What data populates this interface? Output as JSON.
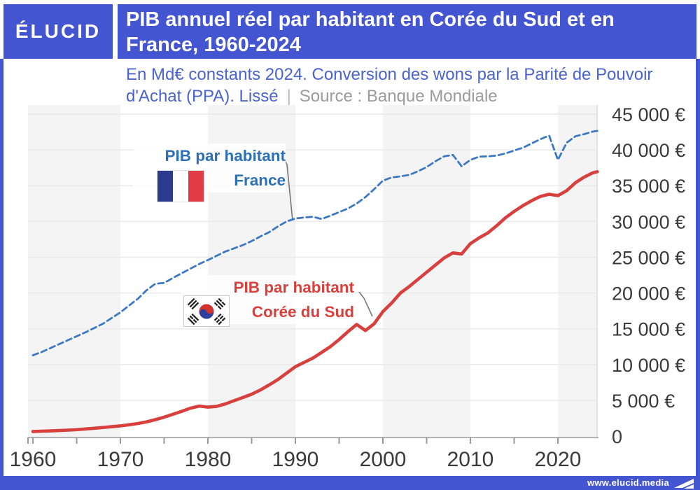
{
  "brand": {
    "logo_text": "ÉLUCID",
    "footer_url": "www.elucid.media"
  },
  "header": {
    "title_line1": "PIB annuel réel par habitant en Corée du Sud et en",
    "title_line2": "France, 1960-2024"
  },
  "subtitle": {
    "line1": "En Md€ constants 2024. Conversion des wons par la Parité de Pouvoir",
    "line2_main": "d'Achat (PPA). Lissé",
    "separator": "|",
    "source": "Source : Banque Mondiale"
  },
  "colors": {
    "brand_blue": "#4355d1",
    "subtitle_blue": "#4a63cf",
    "gray_text": "#9b9b9b",
    "france_blue": "#3c79c2",
    "korea_red": "#d8403e",
    "france_label_blue": "#2e70b8",
    "korea_label_red": "#d8403c",
    "gridline": "#e9e9e9",
    "band_gray": "#f4f4f5",
    "axis_gray": "#b3b3b3"
  },
  "chart_data": {
    "type": "line",
    "title": "PIB annuel réel par habitant en Corée du Sud et en France, 1960-2024",
    "unit": "€ constants 2024 par habitant (PPA, lissé)",
    "source": "Banque Mondiale",
    "x_domain": [
      1959.4,
      2024.5
    ],
    "y_domain": [
      0,
      45000
    ],
    "grid": true,
    "legend_position": "inline-labels",
    "y_ticks": [
      {
        "value": 0,
        "label": "0"
      },
      {
        "value": 5000,
        "label": "5 000 €"
      },
      {
        "value": 10000,
        "label": "10 000 €"
      },
      {
        "value": 15000,
        "label": "15 000 €"
      },
      {
        "value": 20000,
        "label": "20 000 €"
      },
      {
        "value": 25000,
        "label": "25 000 €"
      },
      {
        "value": 30000,
        "label": "30 000 €"
      },
      {
        "value": 35000,
        "label": "35 000 €"
      },
      {
        "value": 40000,
        "label": "40 000 €"
      },
      {
        "value": 45000,
        "label": "45 000 €"
      }
    ],
    "x_ticks": [
      {
        "year": 1960,
        "label": "1960"
      },
      {
        "year": 1970,
        "label": "1970"
      },
      {
        "year": 1980,
        "label": "1980"
      },
      {
        "year": 1990,
        "label": "1990"
      },
      {
        "year": 2000,
        "label": "2000"
      },
      {
        "year": 2010,
        "label": "2010"
      },
      {
        "year": 2020,
        "label": "2020"
      }
    ],
    "x_minor_ticks": [
      1960,
      1965,
      1970,
      1975,
      1980,
      1985,
      1990,
      1995,
      2000,
      2005,
      2010,
      2015,
      2020
    ],
    "gray_band_decades": [
      1960,
      1980,
      2000,
      2020
    ],
    "series": [
      {
        "name": "France",
        "label_line1": "PIB par habitant",
        "label_line2": "France",
        "color": "#3c79c2",
        "style": "dashed",
        "points": [
          [
            1960,
            11300
          ],
          [
            1961,
            11750
          ],
          [
            1962,
            12300
          ],
          [
            1963,
            12850
          ],
          [
            1964,
            13400
          ],
          [
            1965,
            13950
          ],
          [
            1966,
            14500
          ],
          [
            1967,
            15100
          ],
          [
            1968,
            15700
          ],
          [
            1969,
            16500
          ],
          [
            1970,
            17300
          ],
          [
            1971,
            18250
          ],
          [
            1972,
            19200
          ],
          [
            1973,
            20400
          ],
          [
            1974,
            21300
          ],
          [
            1975,
            21400
          ],
          [
            1976,
            22100
          ],
          [
            1977,
            22750
          ],
          [
            1978,
            23400
          ],
          [
            1979,
            24050
          ],
          [
            1980,
            24600
          ],
          [
            1981,
            25200
          ],
          [
            1982,
            25800
          ],
          [
            1983,
            26250
          ],
          [
            1984,
            26700
          ],
          [
            1985,
            27250
          ],
          [
            1986,
            27900
          ],
          [
            1987,
            28500
          ],
          [
            1988,
            29300
          ],
          [
            1989,
            30000
          ],
          [
            1990,
            30400
          ],
          [
            1991,
            30550
          ],
          [
            1992,
            30650
          ],
          [
            1993,
            30350
          ],
          [
            1994,
            30800
          ],
          [
            1995,
            31300
          ],
          [
            1996,
            31800
          ],
          [
            1997,
            32500
          ],
          [
            1998,
            33400
          ],
          [
            1999,
            34500
          ],
          [
            2000,
            35700
          ],
          [
            2001,
            36150
          ],
          [
            2002,
            36300
          ],
          [
            2003,
            36500
          ],
          [
            2004,
            37000
          ],
          [
            2005,
            37600
          ],
          [
            2006,
            38400
          ],
          [
            2007,
            39100
          ],
          [
            2008,
            39300
          ],
          [
            2009,
            37700
          ],
          [
            2010,
            38600
          ],
          [
            2011,
            39050
          ],
          [
            2012,
            39100
          ],
          [
            2013,
            39200
          ],
          [
            2014,
            39500
          ],
          [
            2015,
            39900
          ],
          [
            2016,
            40300
          ],
          [
            2017,
            40900
          ],
          [
            2018,
            41500
          ],
          [
            2019,
            42000
          ],
          [
            2020,
            38600
          ],
          [
            2021,
            41000
          ],
          [
            2022,
            41900
          ],
          [
            2023,
            42200
          ],
          [
            2024,
            42550
          ],
          [
            2024.5,
            42650
          ]
        ]
      },
      {
        "name": "Corée du Sud",
        "label_line1": "PIB par habitant",
        "label_line2": "Corée du Sud",
        "color": "#d8403e",
        "style": "solid",
        "points": [
          [
            1960,
            650
          ],
          [
            1961,
            680
          ],
          [
            1962,
            720
          ],
          [
            1963,
            770
          ],
          [
            1964,
            830
          ],
          [
            1965,
            900
          ],
          [
            1966,
            1000
          ],
          [
            1967,
            1100
          ],
          [
            1968,
            1200
          ],
          [
            1969,
            1310
          ],
          [
            1970,
            1430
          ],
          [
            1971,
            1580
          ],
          [
            1972,
            1760
          ],
          [
            1973,
            2000
          ],
          [
            1974,
            2300
          ],
          [
            1975,
            2650
          ],
          [
            1976,
            3050
          ],
          [
            1977,
            3450
          ],
          [
            1978,
            3900
          ],
          [
            1979,
            4200
          ],
          [
            1980,
            4050
          ],
          [
            1981,
            4150
          ],
          [
            1982,
            4500
          ],
          [
            1983,
            4950
          ],
          [
            1984,
            5400
          ],
          [
            1985,
            5850
          ],
          [
            1986,
            6450
          ],
          [
            1987,
            7150
          ],
          [
            1988,
            7900
          ],
          [
            1989,
            8800
          ],
          [
            1990,
            9700
          ],
          [
            1991,
            10300
          ],
          [
            1992,
            10900
          ],
          [
            1993,
            11700
          ],
          [
            1994,
            12500
          ],
          [
            1995,
            13500
          ],
          [
            1996,
            14600
          ],
          [
            1997,
            15600
          ],
          [
            1998,
            14750
          ],
          [
            1999,
            15700
          ],
          [
            2000,
            17400
          ],
          [
            2001,
            18600
          ],
          [
            2002,
            20000
          ],
          [
            2003,
            20900
          ],
          [
            2004,
            21900
          ],
          [
            2005,
            22900
          ],
          [
            2006,
            23900
          ],
          [
            2007,
            24900
          ],
          [
            2008,
            25600
          ],
          [
            2009,
            25450
          ],
          [
            2010,
            26900
          ],
          [
            2011,
            27700
          ],
          [
            2012,
            28400
          ],
          [
            2013,
            29400
          ],
          [
            2014,
            30500
          ],
          [
            2015,
            31400
          ],
          [
            2016,
            32200
          ],
          [
            2017,
            32900
          ],
          [
            2018,
            33500
          ],
          [
            2019,
            33800
          ],
          [
            2020,
            33600
          ],
          [
            2021,
            34300
          ],
          [
            2022,
            35400
          ],
          [
            2023,
            36200
          ],
          [
            2024,
            36800
          ],
          [
            2024.5,
            36950
          ]
        ]
      }
    ]
  }
}
